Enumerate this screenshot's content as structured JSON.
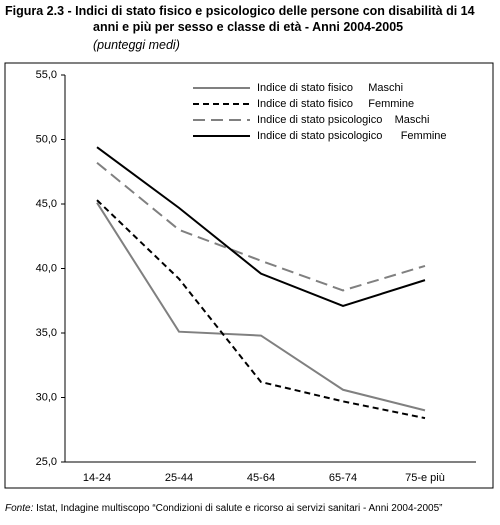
{
  "chart_data": {
    "type": "line",
    "title": "Figura 2.3 - Indici di stato fisico e psicologico delle persone con disabilità di 14 anni e più per sesso e classe di età - Anni 2004-2005",
    "subtitle": "(punteggi medi)",
    "source_label": "Fonte:",
    "source": "Istat, Indagine multiscopo “Condizioni di salute e ricorso ai servizi sanitari - Anni 2004-2005”",
    "categories": [
      "14-24",
      "25-44",
      "45-64",
      "65-74",
      "75-e più"
    ],
    "series": [
      {
        "name": "Indice di stato fisico     Maschi",
        "color": "#808080",
        "dash": false,
        "values": [
          45.1,
          35.1,
          34.8,
          30.6,
          29.0
        ]
      },
      {
        "name": "Indice di stato fisico     Femmine",
        "color": "#000000",
        "dash": true,
        "values": [
          45.3,
          39.2,
          31.2,
          29.7,
          28.4
        ]
      },
      {
        "name": "Indice di stato psicologico    Maschi",
        "color": "#808080",
        "dash": true,
        "values": [
          48.2,
          43.0,
          40.6,
          38.3,
          40.2
        ]
      },
      {
        "name": "Indice di stato psicologico      Femmine",
        "color": "#000000",
        "dash": false,
        "values": [
          49.4,
          44.7,
          39.6,
          37.1,
          39.1
        ]
      }
    ],
    "ylim": [
      25,
      55
    ],
    "yticks": [
      {
        "value": 25,
        "label": "25,0"
      },
      {
        "value": 30,
        "label": "30,0"
      },
      {
        "value": 35,
        "label": "35,0"
      },
      {
        "value": 40,
        "label": "40,0"
      },
      {
        "value": 45,
        "label": "45,0"
      },
      {
        "value": 50,
        "label": "50,0"
      },
      {
        "value": 55,
        "label": "55,0"
      }
    ],
    "legend": "top-right"
  }
}
